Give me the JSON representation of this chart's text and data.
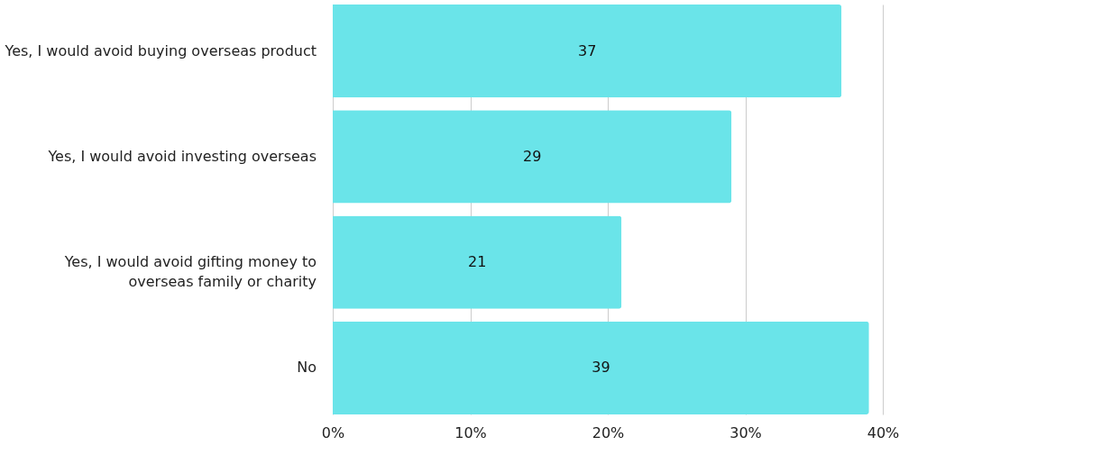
{
  "chart_data": {
    "type": "bar",
    "orientation": "horizontal",
    "categories": [
      "Yes, I would avoid buying overseas product",
      "Yes, I would avoid investing overseas",
      "Yes, I would avoid gifting money to overseas family or charity",
      "No"
    ],
    "values": [
      37,
      29,
      21,
      39
    ],
    "color": "#6ae4e9",
    "xlim": [
      0,
      40
    ],
    "xticks": [
      {
        "value": 0,
        "label": "0%"
      },
      {
        "value": 10,
        "label": "10%"
      },
      {
        "value": 20,
        "label": "20%"
      },
      {
        "value": 30,
        "label": "30%"
      },
      {
        "value": 40,
        "label": "40%"
      }
    ],
    "grid": "x",
    "data_labels": true
  }
}
